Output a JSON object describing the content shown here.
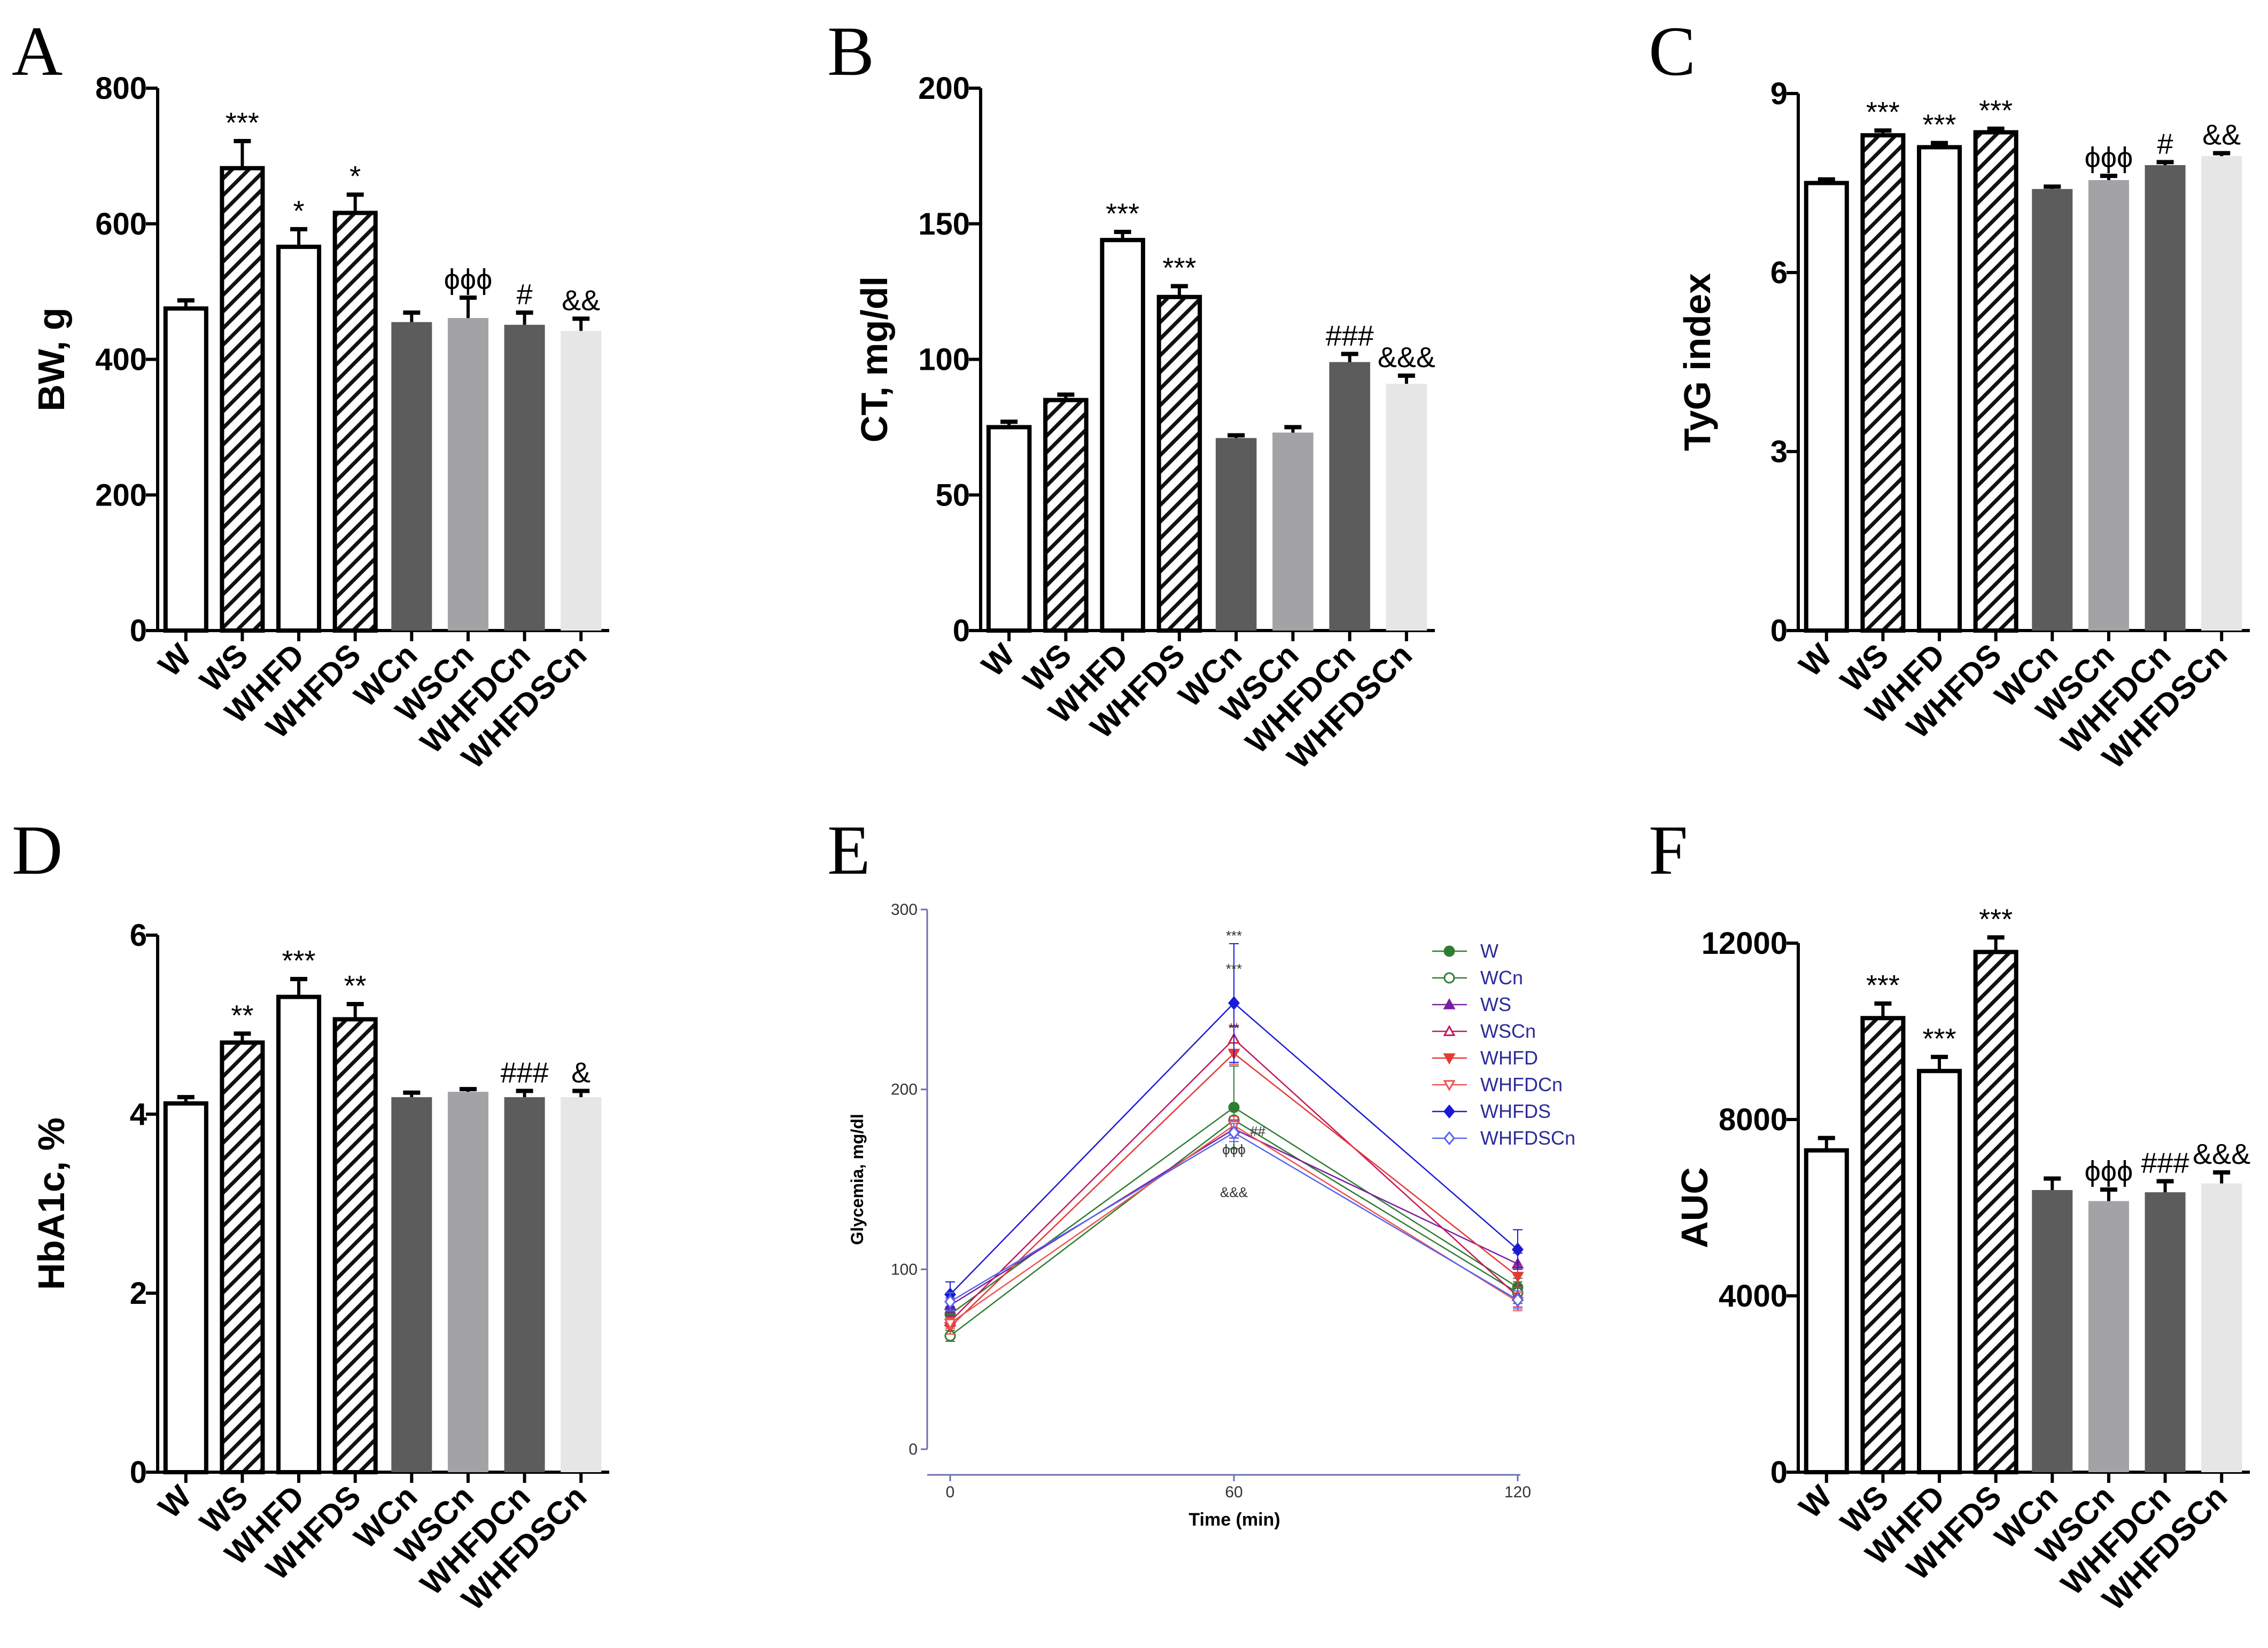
{
  "chart_data": [
    {
      "panel": "A",
      "type": "bar",
      "ylabel": "BW, g",
      "ylim": [
        0,
        800
      ],
      "yticks": [
        0,
        200,
        400,
        600,
        800
      ],
      "categories": [
        "W",
        "WS",
        "WHFD",
        "WHFDS",
        "WCn",
        "WSCn",
        "WHFDCn",
        "WHFDSCn"
      ],
      "values": [
        475,
        682,
        566,
        616,
        455,
        461,
        451,
        442
      ],
      "errors": [
        12,
        40,
        26,
        27,
        14,
        30,
        18,
        18
      ],
      "labels": [
        "",
        "***",
        "*",
        "*",
        "",
        "ϕϕϕ",
        "#",
        "&&"
      ]
    },
    {
      "panel": "B",
      "type": "bar",
      "ylabel": "CT, mg/dl",
      "ylim": [
        0,
        200
      ],
      "yticks": [
        0,
        50,
        100,
        150,
        200
      ],
      "categories": [
        "W",
        "WS",
        "WHFD",
        "WHFDS",
        "WCn",
        "WSCn",
        "WHFDCn",
        "WHFDSCn"
      ],
      "values": [
        75,
        85,
        144,
        123,
        71,
        73,
        99,
        91
      ],
      "errors": [
        2,
        2,
        3,
        4,
        1,
        2,
        3,
        3
      ],
      "labels": [
        "",
        "",
        "***",
        "***",
        "",
        "",
        "###",
        "&&&"
      ]
    },
    {
      "panel": "C",
      "type": "bar",
      "ylabel": "TyG index",
      "ylim": [
        0,
        9
      ],
      "yticks": [
        0,
        3,
        6,
        9
      ],
      "categories": [
        "W",
        "WS",
        "WHFD",
        "WHFDS",
        "WCn",
        "WSCn",
        "WHFDCn",
        "WHFDSCn"
      ],
      "values": [
        7.5,
        8.3,
        8.1,
        8.35,
        7.4,
        7.55,
        7.8,
        7.95
      ],
      "errors": [
        0.06,
        0.08,
        0.07,
        0.06,
        0.04,
        0.07,
        0.05,
        0.05
      ],
      "labels": [
        "",
        "***",
        "***",
        "***",
        "",
        "ϕϕϕ",
        "#",
        "&&"
      ]
    },
    {
      "panel": "D",
      "type": "bar",
      "ylabel": "HbA1c, %",
      "ylim": [
        0,
        6
      ],
      "yticks": [
        0,
        2,
        4,
        6
      ],
      "categories": [
        "W",
        "WS",
        "WHFD",
        "WHFDS",
        "WCn",
        "WSCn",
        "WHFDCn",
        "WHFDSCn"
      ],
      "values": [
        4.12,
        4.8,
        5.31,
        5.06,
        4.19,
        4.25,
        4.19,
        4.19
      ],
      "errors": [
        0.07,
        0.1,
        0.2,
        0.17,
        0.05,
        0.03,
        0.07,
        0.07
      ],
      "labels": [
        "",
        "**",
        "***",
        "**",
        "",
        "",
        "###",
        "&"
      ]
    },
    {
      "panel": "E",
      "type": "line",
      "xlabel": "Time (min)",
      "ylabel": "Glycemia, mg/dl",
      "x": [
        0,
        60,
        120
      ],
      "xlim": [
        0,
        120
      ],
      "ylim": [
        0,
        300
      ],
      "yticks": [
        0,
        100,
        200,
        300
      ],
      "series": [
        {
          "name": "W",
          "values": [
            75,
            190,
            90
          ],
          "errors": [
            4,
            23,
            5
          ],
          "color": "#2e7d32",
          "marker": "circle",
          "filled": true
        },
        {
          "name": "WCn",
          "values": [
            63,
            183,
            87
          ],
          "errors": [
            3,
            6,
            6
          ],
          "color": "#2e7d32",
          "marker": "circle",
          "filled": false
        },
        {
          "name": "WS",
          "values": [
            80,
            178,
            103
          ],
          "errors": [
            4,
            5,
            6
          ],
          "color": "#7b1fa2",
          "marker": "triangle-up",
          "filled": true
        },
        {
          "name": "WSCn",
          "values": [
            71,
            228,
            85
          ],
          "errors": [
            3,
            7,
            6
          ],
          "color": "#c2185b",
          "marker": "triangle-up",
          "filled": false
        },
        {
          "name": "WHFD",
          "values": [
            68,
            220,
            96
          ],
          "errors": [
            4,
            6,
            6
          ],
          "color": "#e53935",
          "marker": "triangle-down",
          "filled": true
        },
        {
          "name": "WHFDCn",
          "values": [
            70,
            180,
            82
          ],
          "errors": [
            3,
            5,
            5
          ],
          "color": "#ef5350",
          "marker": "triangle-down",
          "filled": false
        },
        {
          "name": "WHFDS",
          "values": [
            86,
            248,
            111
          ],
          "errors": [
            7,
            33,
            11
          ],
          "color": "#1a1ad6",
          "marker": "diamond",
          "filled": true
        },
        {
          "name": "WHFDSCn",
          "values": [
            82,
            176,
            83
          ],
          "errors": [
            5,
            5,
            5
          ],
          "color": "#5566ee",
          "marker": "diamond",
          "filled": false
        }
      ],
      "annotations": [
        "***",
        "***",
        "**",
        "##",
        "ϕϕϕ",
        "&&&"
      ]
    },
    {
      "panel": "F",
      "type": "bar",
      "ylabel": "AUC",
      "ylim": [
        0,
        12000
      ],
      "yticks": [
        0,
        4000,
        8000,
        12000
      ],
      "categories": [
        "W",
        "WS",
        "WHFD",
        "WHFDS",
        "WCn",
        "WSCn",
        "WHFDCn",
        "WHFDSCn"
      ],
      "values": [
        7300,
        10300,
        9100,
        11800,
        6400,
        6150,
        6350,
        6550
      ],
      "errors": [
        280,
        330,
        320,
        330,
        260,
        260,
        250,
        250
      ],
      "labels": [
        "",
        "***",
        "***",
        "***",
        "",
        "ϕϕϕ",
        "###",
        "&&&"
      ]
    }
  ],
  "colors": {
    "white_bar": "#ffffff",
    "hatch_bar": "#ffffff",
    "dark_bar": "#5c5c5c",
    "mid_bar": "#a3a3a6",
    "light_bar": "#e6e6e6",
    "outline": "#000000",
    "panel_e_axis": "#6f6fb0"
  }
}
